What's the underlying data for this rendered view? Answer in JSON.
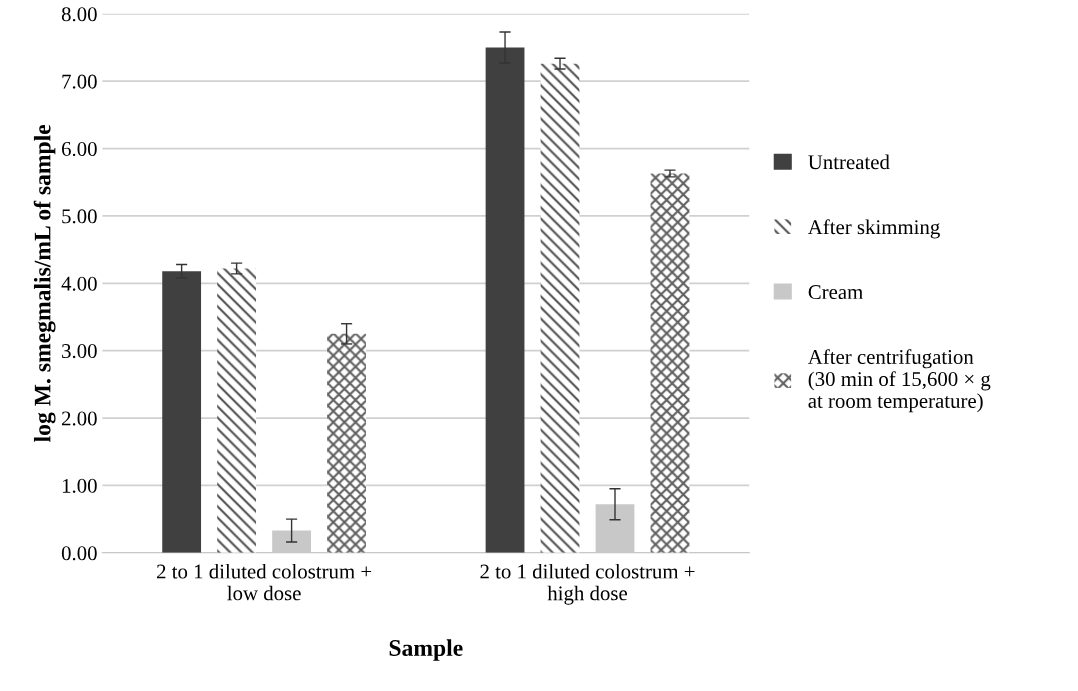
{
  "chart_data": {
    "type": "bar",
    "xlabel": "Sample",
    "ylabel": "log M. smegmalis/mL of sample",
    "categories": [
      "2 to 1 diluted colostrum +\nlow dose",
      "2 to 1 diluted colostrum +\nhigh dose"
    ],
    "series": [
      {
        "name": "Untreated",
        "color": "#404040",
        "values": [
          4.18,
          7.5
        ],
        "errors": [
          0.1,
          0.23
        ]
      },
      {
        "name": "After skimming",
        "color": "#505050",
        "values": [
          4.22,
          7.26
        ],
        "errors": [
          0.08,
          0.08
        ]
      },
      {
        "name": "Cream",
        "color": "#c8c8c8",
        "values": [
          0.33,
          0.72
        ],
        "errors": [
          0.17,
          0.23
        ]
      },
      {
        "name": "After centrifugation\n(30 min of 15,600 × g\nat room temperature)",
        "color": "#606060",
        "values": [
          3.25,
          5.63
        ],
        "errors": [
          0.15,
          0.05
        ]
      }
    ],
    "ylim": [
      0,
      8
    ],
    "yticks": [
      {
        "value": 0,
        "label": "0.00"
      },
      {
        "value": 1,
        "label": "1.00"
      },
      {
        "value": 2,
        "label": "2.00"
      },
      {
        "value": 3,
        "label": "3.00"
      },
      {
        "value": 4,
        "label": "4.00"
      },
      {
        "value": 5,
        "label": "5.00"
      },
      {
        "value": 6,
        "label": "6.00"
      },
      {
        "value": 7,
        "label": "7.00"
      },
      {
        "value": 8,
        "label": "8.00"
      }
    ],
    "grid": "y",
    "legend": "right"
  }
}
